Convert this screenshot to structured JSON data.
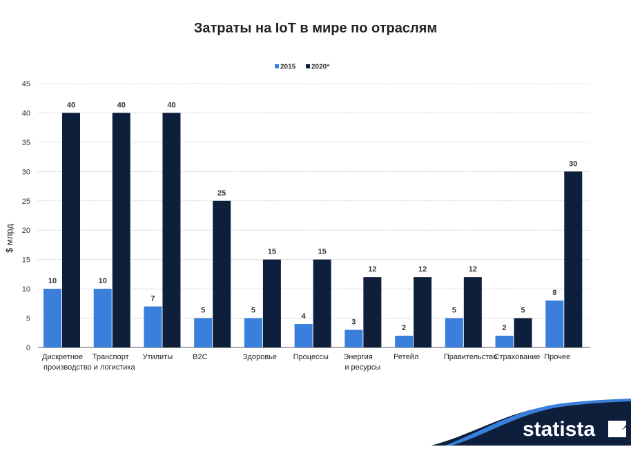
{
  "chart_data": {
    "type": "bar",
    "title": "Затраты на IoT в мире по отраслям",
    "ylabel": "$ млрд",
    "xlabel": "",
    "ylim": [
      0,
      45
    ],
    "yticks": [
      0,
      5,
      10,
      15,
      20,
      25,
      30,
      35,
      40,
      45
    ],
    "grid": true,
    "legend_position": "top-center",
    "categories": [
      [
        "Дискретное",
        "производство"
      ],
      [
        "Транспорт",
        "и логистика"
      ],
      [
        "Утилиты"
      ],
      [
        "B2C"
      ],
      [
        "Здоровье"
      ],
      [
        "Процессы"
      ],
      [
        "Энергия",
        "и ресурсы"
      ],
      [
        "Ретейл"
      ],
      [
        "Правительство"
      ],
      [
        "Страхование"
      ],
      [
        "Прочее"
      ]
    ],
    "series": [
      {
        "name": "2015",
        "color": "#3a7fdc",
        "values": [
          10,
          10,
          7,
          5,
          5,
          4,
          3,
          2,
          5,
          2,
          8
        ]
      },
      {
        "name": "2020*",
        "color": "#0e1f3c",
        "values": [
          40,
          40,
          40,
          25,
          15,
          15,
          12,
          12,
          12,
          5,
          30
        ]
      }
    ]
  },
  "brand": {
    "name": "statista",
    "color": "#0e1f3c",
    "accent": "#3a7fdc"
  }
}
